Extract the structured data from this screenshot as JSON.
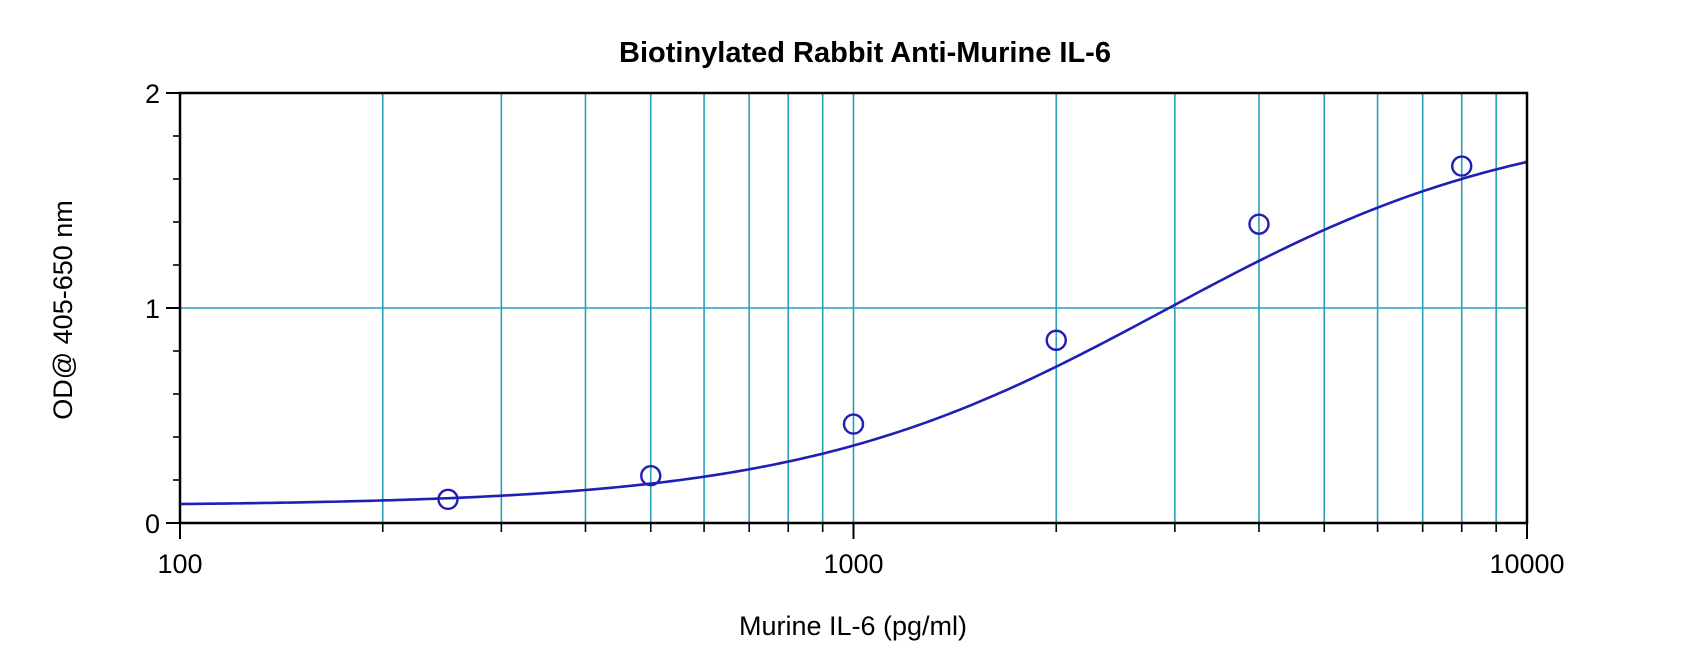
{
  "chart_data": {
    "type": "scatter",
    "title": "Biotinylated Rabbit Anti-Murine IL-6",
    "xlabel": "Murine IL-6 (pg/ml)",
    "ylabel": "OD@ 405-650 nm",
    "x_scale": "log",
    "xlim": [
      100,
      10000
    ],
    "ylim": [
      0,
      2
    ],
    "x_tick_labels": [
      "100",
      "1000",
      "10000"
    ],
    "y_tick_labels": [
      "0",
      "1",
      "2"
    ],
    "grid": true,
    "legend": "none",
    "colors": {
      "grid": "#2a9fb8",
      "series": "#1f1fb4",
      "axis": "#000000"
    },
    "series": [
      {
        "points": [
          {
            "x": 250,
            "y": 0.11
          },
          {
            "x": 500,
            "y": 0.22
          },
          {
            "x": 1000,
            "y": 0.46
          },
          {
            "x": 2000,
            "y": 0.85
          },
          {
            "x": 4000,
            "y": 1.39
          },
          {
            "x": 8000,
            "y": 1.66
          }
        ]
      }
    ],
    "fit_curve": {
      "model": "4PL",
      "bottom": 0.08,
      "top": 1.9,
      "ec50": 2900,
      "hill": 1.6
    }
  }
}
